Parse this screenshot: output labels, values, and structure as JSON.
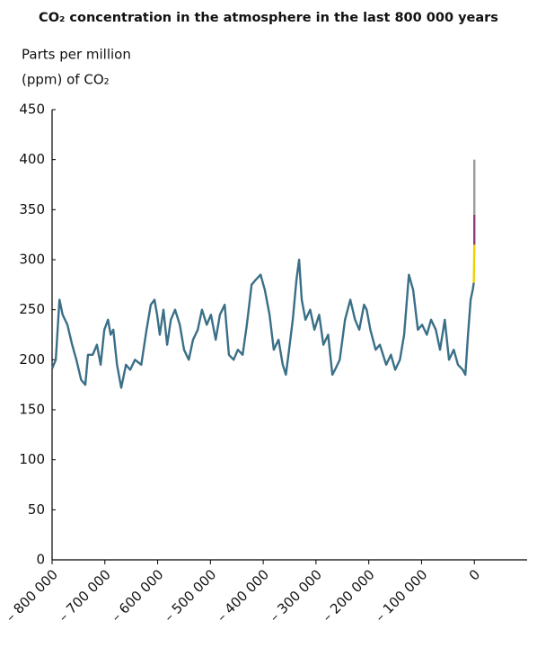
{
  "chart_data": {
    "type": "line",
    "title": "CO₂ concentration in the atmosphere in the last 800 000 years",
    "y_label": [
      "Parts per million",
      "(ppm) of CO₂"
    ],
    "xlim": [
      -800000,
      100000
    ],
    "xticks": [
      {
        "value": -800000,
        "label": "– 800 000"
      },
      {
        "value": -700000,
        "label": "– 700 000"
      },
      {
        "value": -600000,
        "label": "– 600 000"
      },
      {
        "value": -500000,
        "label": "– 500 000"
      },
      {
        "value": -400000,
        "label": "– 400 000"
      },
      {
        "value": -300000,
        "label": "– 300 000"
      },
      {
        "value": -200000,
        "label": "– 200 000"
      },
      {
        "value": -100000,
        "label": "– 100 000"
      },
      0
    ],
    "ylim": [
      0,
      450
    ],
    "yticks": [
      0,
      50,
      100,
      150,
      200,
      250,
      300,
      350,
      400,
      450
    ],
    "series": [
      {
        "color": "#3a6f88",
        "x": [
          -800000,
          -793000,
          -786000,
          -780000,
          -771000,
          -762000,
          -754000,
          -745000,
          -737000,
          -732000,
          -723000,
          -715000,
          -708000,
          -701000,
          -694000,
          -689000,
          -684000,
          -677000,
          -669000,
          -660000,
          -652000,
          -643000,
          -631000,
          -621000,
          -613000,
          -606000,
          -601000,
          -596000,
          -589000,
          -582000,
          -575000,
          -567000,
          -558000,
          -550000,
          -541000,
          -533000,
          -524000,
          -516000,
          -507000,
          -499000,
          -490000,
          -482000,
          -473000,
          -465000,
          -456000,
          -448000,
          -439000,
          -431000,
          -422000,
          -414000,
          -405000,
          -397000,
          -388000,
          -380000,
          -371000,
          -363000,
          -357000,
          -351000,
          -344000,
          -337000,
          -332000,
          -327000,
          -320000,
          -311000,
          -303000,
          -294000,
          -286000,
          -277000,
          -269000,
          -264000,
          -255000,
          -245000,
          -235000,
          -226000,
          -218000,
          -209000,
          -204000,
          -197000,
          -187000,
          -179000,
          -167000,
          -158000,
          -150000,
          -141000,
          -133000,
          -124000,
          -116000,
          -107000,
          -99000,
          -90000,
          -82000,
          -73000,
          -65000,
          -56000,
          -48000,
          -39000,
          -31000,
          -22000,
          -17000,
          -12000,
          -7000,
          -3000,
          -1000
        ],
        "values": [
          191,
          200,
          260,
          245,
          235,
          215,
          200,
          180,
          175,
          205,
          205,
          215,
          195,
          230,
          240,
          225,
          230,
          195,
          172,
          195,
          190,
          200,
          195,
          230,
          255,
          260,
          245,
          225,
          250,
          215,
          240,
          250,
          235,
          210,
          200,
          220,
          230,
          250,
          235,
          245,
          220,
          245,
          255,
          205,
          200,
          210,
          205,
          235,
          275,
          280,
          285,
          270,
          245,
          210,
          220,
          195,
          185,
          210,
          240,
          280,
          300,
          260,
          240,
          250,
          230,
          245,
          215,
          225,
          185,
          190,
          200,
          240,
          260,
          240,
          230,
          255,
          250,
          230,
          210,
          215,
          195,
          205,
          190,
          200,
          225,
          285,
          270,
          230,
          235,
          225,
          240,
          230,
          210,
          240,
          200,
          210,
          195,
          190,
          185,
          225,
          260,
          270,
          277
        ]
      },
      {
        "color": "#f2d000",
        "x": [
          -1000,
          0
        ],
        "values": [
          277,
          315
        ]
      },
      {
        "color": "#8e3b7c",
        "x": [
          0,
          0
        ],
        "values": [
          315,
          345
        ]
      },
      {
        "color": "#9a9a9a",
        "x": [
          0,
          0
        ],
        "values": [
          345,
          400
        ]
      }
    ]
  }
}
